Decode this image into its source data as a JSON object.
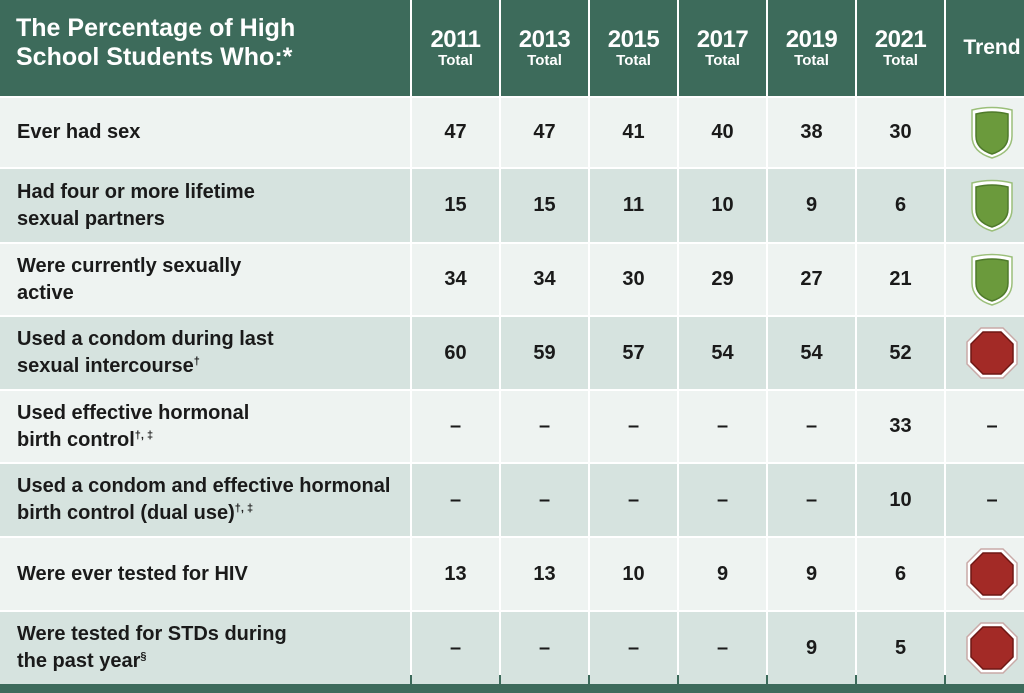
{
  "header": {
    "title": "The Percentage of High School Students Who:*",
    "years": [
      {
        "year": "2011",
        "sub": "Total"
      },
      {
        "year": "2013",
        "sub": "Total"
      },
      {
        "year": "2015",
        "sub": "Total"
      },
      {
        "year": "2017",
        "sub": "Total"
      },
      {
        "year": "2019",
        "sub": "Total"
      },
      {
        "year": "2021",
        "sub": "Total"
      }
    ],
    "trend_label": "Trend"
  },
  "rows": [
    {
      "label": "Ever had sex",
      "sup": "",
      "values": [
        "47",
        "47",
        "41",
        "40",
        "38",
        "30"
      ],
      "trend": "green-shield"
    },
    {
      "label": "Had four or more lifetime sexual partners",
      "sup": "",
      "values": [
        "15",
        "15",
        "11",
        "10",
        "9",
        "6"
      ],
      "trend": "green-shield"
    },
    {
      "label": "Were currently sexually active",
      "sup": "",
      "values": [
        "34",
        "34",
        "30",
        "29",
        "27",
        "21"
      ],
      "trend": "green-shield"
    },
    {
      "label": "Used a condom during last sexual intercourse",
      "sup": "†",
      "values": [
        "60",
        "59",
        "57",
        "54",
        "54",
        "52"
      ],
      "trend": "red-octagon"
    },
    {
      "label": "Used effective hormonal birth control",
      "sup": "†, ‡",
      "values": [
        "–",
        "–",
        "–",
        "–",
        "–",
        "33"
      ],
      "trend": "–"
    },
    {
      "label": "Used a condom and effective hormonal birth control (dual use)",
      "sup": "†, ‡",
      "values": [
        "–",
        "–",
        "–",
        "–",
        "–",
        "10"
      ],
      "trend": "–"
    },
    {
      "label": "Were ever tested for HIV",
      "sup": "",
      "values": [
        "13",
        "13",
        "10",
        "9",
        "9",
        "6"
      ],
      "trend": "red-octagon"
    },
    {
      "label": "Were tested for STDs during the past year",
      "sup": "§",
      "values": [
        "–",
        "–",
        "–",
        "–",
        "9",
        "5"
      ],
      "trend": "red-octagon"
    }
  ],
  "colors": {
    "header_bg": "#3d6b5b",
    "row_light": "#eef3f1",
    "row_dark": "#d6e3df",
    "shield_green": "#6b9a3c",
    "octagon_red": "#a32a26"
  }
}
